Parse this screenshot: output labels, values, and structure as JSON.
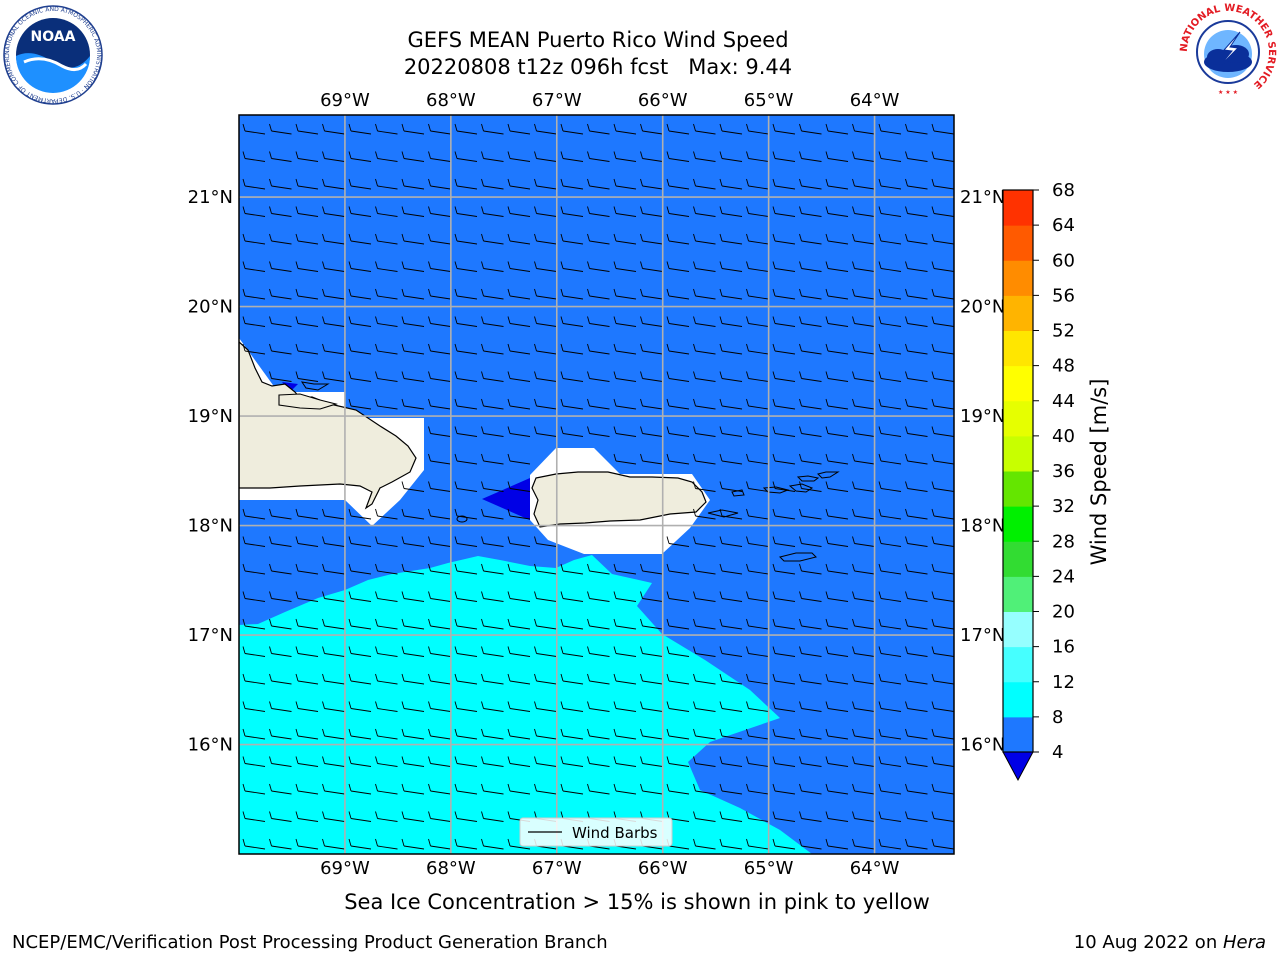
{
  "header": {
    "title_line1": "GEFS MEAN Puerto Rico Wind Speed",
    "title_line2": "20220808 t12z 096h fcst   Max: 9.44"
  },
  "logos": {
    "noaa_text": "NOAA",
    "noaa_ring_text": "NATIONAL OCEANIC AND ATMOSPHERIC ADMINISTRATION · U.S. DEPARTMENT OF COMMERCE",
    "nws_ring_text": "NATIONAL WEATHER SERVICE"
  },
  "map": {
    "lon_labels": [
      "69°W",
      "68°W",
      "67°W",
      "66°W",
      "65°W",
      "64°W"
    ],
    "lat_labels": [
      "21°N",
      "20°N",
      "19°N",
      "18°N",
      "17°N",
      "16°N"
    ],
    "lon_values": [
      -69,
      -68,
      -67,
      -66,
      -65,
      -64
    ],
    "lat_values": [
      21,
      20,
      19,
      18,
      17,
      16
    ],
    "extent": {
      "lon_min": -70,
      "lon_max": -63.25,
      "lat_min": 15,
      "lat_max": 21.75
    },
    "legend_label": "Wind Barbs",
    "colors": {
      "ocean_4_8": "#1E78FF",
      "zone_0_4": "#0000E6",
      "zone_8_12": "#00FFFF",
      "land": "#EFEDDD",
      "grid": "#B0B0B0"
    }
  },
  "colorbar": {
    "label": "Wind Speed [m/s]",
    "ticks": [
      "68",
      "64",
      "60",
      "56",
      "52",
      "48",
      "44",
      "40",
      "36",
      "32",
      "28",
      "24",
      "20",
      "16",
      "12",
      "8",
      "4"
    ],
    "bounds": [
      4,
      8,
      12,
      16,
      20,
      24,
      28,
      32,
      36,
      40,
      44,
      48,
      52,
      56,
      60,
      64,
      68
    ],
    "colors": [
      "#1E78FF",
      "#00FFFF",
      "#46FFFF",
      "#96FFFF",
      "#50F078",
      "#32DC32",
      "#00F000",
      "#64E600",
      "#C8FF00",
      "#E6FF00",
      "#FFFF00",
      "#FFE600",
      "#FFB400",
      "#FF8C00",
      "#FF5A00",
      "#FF3200"
    ],
    "under_color": "#0000E6"
  },
  "caption": "Sea Ice Concentration > 15% is shown in pink to yellow",
  "footer": {
    "left": "NCEP/EMC/Verification Post Processing Product Generation Branch",
    "right_prefix": "10 Aug 2022 on ",
    "right_machine": "Hera"
  }
}
